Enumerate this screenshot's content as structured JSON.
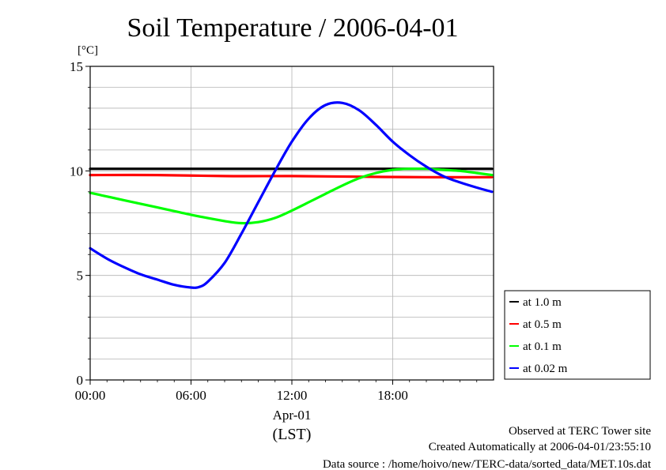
{
  "chart_data": {
    "type": "line",
    "title": "Soil Temperature / 2006-04-01",
    "ylabel": "[°C]",
    "xlabel": "(LST)",
    "x_date_label": "Apr-01",
    "xlim": [
      0,
      24
    ],
    "ylim": [
      0,
      15
    ],
    "x_ticks": [
      {
        "value": 0,
        "label": "00:00"
      },
      {
        "value": 6,
        "label": "06:00"
      },
      {
        "value": 12,
        "label": "12:00"
      },
      {
        "value": 18,
        "label": "18:00"
      }
    ],
    "y_ticks": [
      {
        "value": 0,
        "label": "0"
      },
      {
        "value": 5,
        "label": "5"
      },
      {
        "value": 10,
        "label": "10"
      },
      {
        "value": 15,
        "label": "15"
      }
    ],
    "y_minor_step": 1,
    "grid": true,
    "legend_position": "bottom-right outside",
    "series": [
      {
        "name": "at 1.0 m",
        "color": "#000000",
        "x": [
          0,
          4,
          8,
          12,
          16,
          20,
          23.9
        ],
        "y": [
          10.1,
          10.1,
          10.1,
          10.1,
          10.1,
          10.1,
          10.1
        ]
      },
      {
        "name": "at 0.5 m",
        "color": "#ff0000",
        "x": [
          0,
          4,
          8,
          12,
          16,
          20,
          23.9
        ],
        "y": [
          9.8,
          9.8,
          9.75,
          9.75,
          9.72,
          9.7,
          9.7
        ]
      },
      {
        "name": "at 0.1 m",
        "color": "#00ff00",
        "x": [
          0,
          2,
          4,
          6,
          8,
          9,
          10,
          11,
          12,
          13,
          14,
          15,
          16,
          17,
          18,
          19,
          20,
          21,
          22,
          23,
          23.9
        ],
        "y": [
          8.95,
          8.6,
          8.25,
          7.9,
          7.6,
          7.5,
          7.55,
          7.75,
          8.1,
          8.5,
          8.9,
          9.3,
          9.65,
          9.9,
          10.05,
          10.1,
          10.1,
          10.05,
          10.0,
          9.9,
          9.8
        ]
      },
      {
        "name": "at 0.02 m",
        "color": "#0000ff",
        "x": [
          0,
          1,
          2,
          3,
          4,
          5,
          6,
          6.5,
          7,
          8,
          9,
          10,
          11,
          12,
          13,
          14,
          15,
          16,
          17,
          18,
          19,
          20,
          21,
          22,
          23,
          23.9
        ],
        "y": [
          6.3,
          5.8,
          5.4,
          5.05,
          4.8,
          4.55,
          4.42,
          4.45,
          4.7,
          5.6,
          7.0,
          8.5,
          10.0,
          11.4,
          12.5,
          13.15,
          13.25,
          12.9,
          12.2,
          11.4,
          10.75,
          10.2,
          9.75,
          9.45,
          9.2,
          9.0
        ]
      }
    ]
  },
  "footer": {
    "line1": "Observed at TERC Tower site",
    "line2": "Created Automatically at 2006-04-01/23:55:10",
    "line3": "Data source : /home/hoivo/new/TERC-data/sorted_data/MET.10s.dat"
  }
}
